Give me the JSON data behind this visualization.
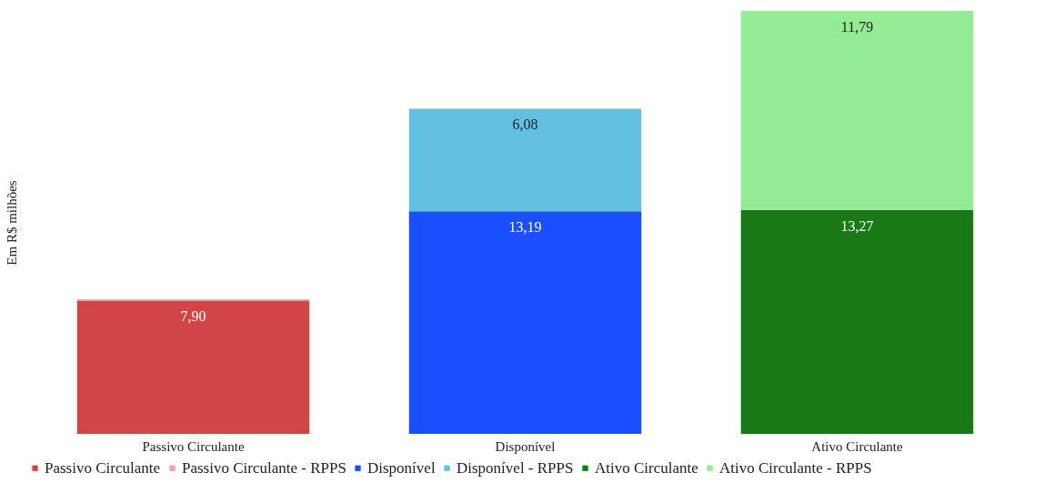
{
  "chart_data": {
    "type": "bar",
    "stacked": true,
    "ylabel": "Em R$ milhões",
    "categories": [
      "Passivo Circulante",
      "Disponível",
      "Ativo Circulante"
    ],
    "series": [
      {
        "name": "Passivo Circulante",
        "color": "#d04545",
        "values": [
          7.9,
          null,
          null
        ],
        "value_labels": [
          "7,90",
          null,
          null
        ]
      },
      {
        "name": "Passivo Circulante - RPPS",
        "color": "#f4a0a0",
        "values": [
          0.08,
          null,
          null
        ],
        "value_labels": [
          null,
          null,
          null
        ]
      },
      {
        "name": "Disponível",
        "color": "#1a4ffd",
        "values": [
          null,
          13.19,
          null
        ],
        "value_labels": [
          null,
          "13,19",
          null
        ]
      },
      {
        "name": "Disponível - RPPS",
        "color": "#62c1e1",
        "values": [
          null,
          6.08,
          null
        ],
        "value_labels": [
          null,
          "6,08",
          null
        ]
      },
      {
        "name": "Ativo Circulante",
        "color": "#177a17",
        "values": [
          null,
          null,
          13.27
        ],
        "value_labels": [
          null,
          null,
          "13,27"
        ]
      },
      {
        "name": "Ativo Circulante - RPPS",
        "color": "#93ec93",
        "values": [
          null,
          null,
          11.79
        ],
        "value_labels": [
          null,
          null,
          "11,79"
        ]
      }
    ],
    "legend": "bottom",
    "grid": false
  }
}
